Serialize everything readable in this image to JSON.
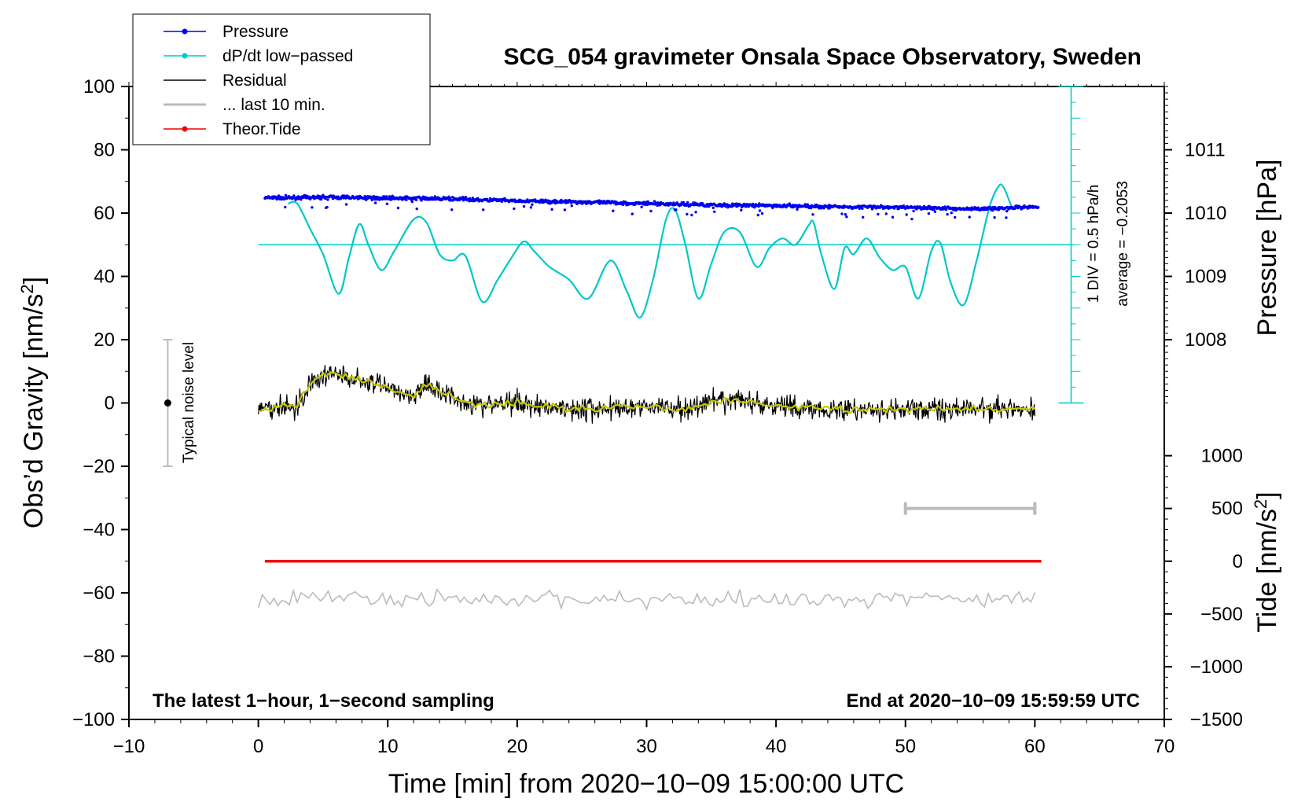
{
  "chart_data": {
    "type": "line",
    "title": "SCG_054 gravimeter Onsala Space Observatory, Sweden",
    "xlabel": "Time [min] from 2020−10−09 15:00:00 UTC",
    "ylabel_left": "Obs’d Gravity [nm/s²]",
    "ylabel_right_top": "Pressure [hPa]",
    "ylabel_right_bottom": "Tide [nm/s²]",
    "xlim": [
      -10,
      70
    ],
    "ylim": [
      -100,
      100
    ],
    "x_ticks": [
      "−10",
      "0",
      "10",
      "20",
      "30",
      "40",
      "50",
      "60",
      "70"
    ],
    "y_ticks": [
      "100",
      "80",
      "60",
      "40",
      "20",
      "0",
      "−20",
      "−40",
      "−60",
      "−80",
      "−100"
    ],
    "pressure_axis": {
      "ticks": [
        "1011",
        "1010",
        "1009",
        "1008"
      ],
      "values": [
        1011,
        1010,
        1009,
        1008
      ],
      "gravity_equiv": [
        80,
        60,
        40,
        20
      ]
    },
    "tide_axis": {
      "ticks": [
        "1000",
        "500",
        "0",
        "−500",
        "−1000",
        "−1500"
      ],
      "values": [
        1000,
        500,
        0,
        -500,
        -1000,
        -1500
      ]
    },
    "legend": [
      {
        "label": "Pressure",
        "color": "#0000ee",
        "marker": true
      },
      {
        "label": "dP/dt low−passed",
        "color": "#00c8c8",
        "marker": true
      },
      {
        "label": "Residual",
        "color": "#000000",
        "marker": false
      },
      {
        "label": "... last 10 min.",
        "color": "#bbbbbb",
        "marker": false
      },
      {
        "label": "Theor.Tide",
        "color": "#ee0000",
        "marker": true
      }
    ],
    "annotations": {
      "noise_label": "Typical noise level",
      "noise_range": [
        -20,
        20
      ],
      "noise_x": -7,
      "dpdt_div": "1 DIV = 0.5 hPa/h",
      "dpdt_avg": "average = −0.2053",
      "bottom_left": "The latest 1−hour, 1−second sampling",
      "bottom_right": "End at 2020−10−09 15:59:59 UTC",
      "last10_range": [
        50,
        60
      ]
    },
    "series": [
      {
        "name": "Pressure",
        "color": "#0000ee",
        "x": [
          0.5,
          5,
          10,
          15,
          20,
          25,
          30,
          35,
          40,
          45,
          50,
          55,
          60
        ],
        "values": [
          64.8,
          65,
          64.8,
          64.5,
          63.8,
          63.5,
          63,
          62.6,
          62.3,
          62,
          61.8,
          61.3,
          61.8
        ]
      },
      {
        "name": "dP/dt low−passed",
        "color": "#00c8c8",
        "baseline": 50,
        "x": [
          2.3,
          3,
          4,
          5,
          6.2,
          7,
          7.8,
          8.5,
          9.5,
          10.5,
          12,
          13,
          14,
          15,
          16,
          17.3,
          18.5,
          19.5,
          20.5,
          21.3,
          22.5,
          24,
          25.5,
          27.2,
          28.5,
          29.5,
          30.5,
          31.5,
          32.2,
          33,
          34,
          35,
          36,
          37.2,
          38.5,
          39.5,
          40.5,
          41.5,
          42.5,
          42.9,
          43.5,
          44.5,
          45.3,
          46,
          47,
          48,
          49,
          50,
          51,
          52,
          52.7,
          53.5,
          54.5,
          55.5,
          56.5,
          57.2,
          57.6,
          58.2
        ],
        "values": [
          63,
          63,
          55,
          47,
          34.5,
          46,
          56.5,
          50,
          42,
          48,
          58,
          57,
          47,
          45,
          46.5,
          32,
          39,
          45.5,
          51,
          48,
          43,
          39,
          33,
          45,
          35,
          27,
          39,
          58,
          61,
          50,
          33,
          44,
          54,
          54,
          43,
          49,
          52,
          50,
          56,
          57,
          47,
          36,
          49,
          47,
          52,
          46,
          42,
          43,
          33,
          48,
          50.5,
          38,
          31,
          45,
          62,
          68.5,
          68,
          62
        ]
      },
      {
        "name": "Residual",
        "color": "#000000",
        "smooth_color": "#c8c800",
        "x": [
          0,
          2,
          3,
          4,
          5,
          6,
          7,
          8,
          10,
          12,
          13,
          14,
          15,
          17,
          20,
          25,
          30,
          33,
          35,
          37,
          40,
          45,
          50,
          55,
          60
        ],
        "values": [
          -2,
          -1,
          -1,
          6,
          9,
          9,
          8,
          7,
          5,
          2,
          6,
          4,
          2,
          -1,
          0,
          -2,
          -1,
          -2,
          0,
          1,
          -1,
          -2,
          -2,
          -2,
          -2
        ]
      },
      {
        "name": "... last 10 min.",
        "color": "#bbbbbb",
        "x": [
          0,
          10,
          20,
          30,
          40,
          50,
          60
        ],
        "values": [
          -62,
          -62,
          -62,
          -62,
          -62,
          -62,
          -62
        ]
      },
      {
        "name": "Theor.Tide",
        "color": "#ee0000",
        "x": [
          0.5,
          3,
          20,
          40,
          60.5
        ],
        "values": [
          -50,
          -50,
          -50,
          -50,
          -50
        ]
      }
    ]
  }
}
